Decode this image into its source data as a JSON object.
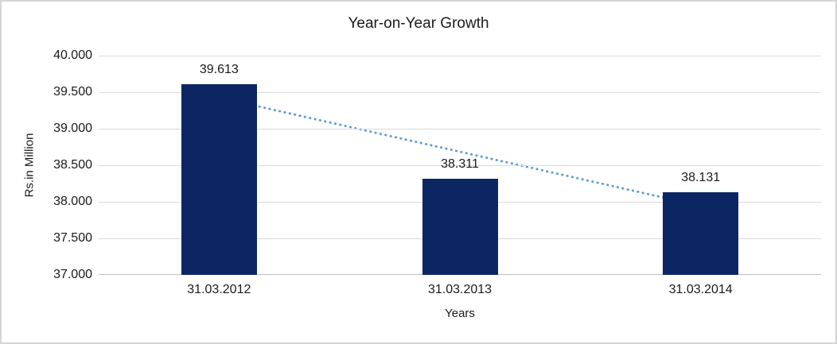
{
  "chart_data": {
    "type": "bar",
    "title": "Year-on-Year Growth",
    "categories": [
      "31.03.2012",
      "31.03.2013",
      "31.03.2014"
    ],
    "values": [
      39.613,
      38.311,
      38.131
    ],
    "value_labels": [
      "39.613",
      "38.311",
      "38.131"
    ],
    "xlabel": "Years",
    "ylabel": "Rs.in Million",
    "ylim": [
      37,
      40
    ],
    "yticks": [
      {
        "value": 37.0,
        "label": "37.000"
      },
      {
        "value": 37.5,
        "label": "37.500"
      },
      {
        "value": 38.0,
        "label": "38.000"
      },
      {
        "value": 38.5,
        "label": "38.500"
      },
      {
        "value": 39.0,
        "label": "39.000"
      },
      {
        "value": 39.5,
        "label": "39.500"
      },
      {
        "value": 40.0,
        "label": "40.000"
      }
    ],
    "grid": true,
    "legend": "none",
    "trendline": {
      "type": "linear",
      "style": "dotted",
      "values": [
        39.426,
        38.685,
        37.944
      ]
    },
    "colors": {
      "bar": "#0b2663",
      "trendline": "#5b9bd5",
      "gridline": "#d9d9d9",
      "axis_line": "#bfbfbf",
      "text": "#1a1a1a",
      "border": "#d4d4d4",
      "background": "#ffffff"
    }
  }
}
